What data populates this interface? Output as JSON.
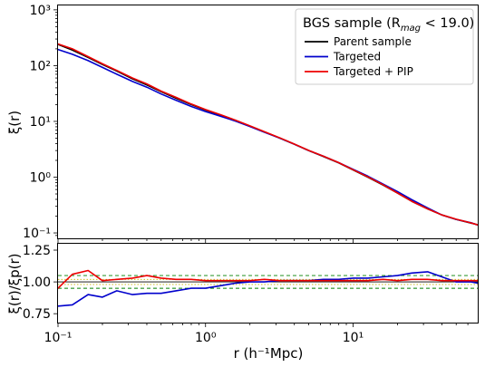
{
  "chart_data": {
    "type": "line",
    "x_scale": "log",
    "xlabel": "r (h⁻¹Mpc)",
    "xlim": [
      0.1,
      70
    ],
    "x_ticks": [
      0.1,
      1,
      10
    ],
    "x_tick_labels": [
      "10⁻¹",
      "10⁰",
      "10¹"
    ],
    "top_panel": {
      "ylabel": "ξ(r)",
      "y_scale": "log",
      "ylim": [
        0.08,
        1200
      ],
      "y_ticks": [
        0.1,
        1,
        10,
        100,
        1000
      ],
      "y_tick_labels": [
        "10⁻¹",
        "10⁰",
        "10¹",
        "10²",
        "10³"
      ],
      "legend": {
        "title": "BGS sample (R",
        "title_sub": "mag",
        "title_tail": " < 19.0)",
        "position": "top-right",
        "entries": [
          {
            "label": "Parent sample",
            "color": "#000000"
          },
          {
            "label": "Targeted",
            "color": "#0000cc"
          },
          {
            "label": "Targeted + PIP",
            "color": "#ee0000"
          }
        ]
      },
      "series": [
        {
          "name": "Parent sample",
          "color": "#000000",
          "x": [
            0.1,
            0.125,
            0.16,
            0.2,
            0.25,
            0.32,
            0.4,
            0.5,
            0.63,
            0.8,
            1.0,
            1.26,
            1.6,
            2.0,
            2.5,
            3.2,
            4.0,
            5.0,
            6.3,
            8.0,
            10,
            12.6,
            16,
            20,
            25,
            32,
            40,
            50,
            63,
            70
          ],
          "y": [
            240,
            190,
            140,
            105,
            80,
            58,
            45,
            34,
            26,
            20,
            16,
            13,
            10.4,
            8.2,
            6.5,
            5.0,
            3.9,
            3.0,
            2.35,
            1.8,
            1.35,
            1.0,
            0.72,
            0.52,
            0.37,
            0.27,
            0.21,
            0.175,
            0.15,
            0.14
          ]
        },
        {
          "name": "Targeted",
          "color": "#0000cc",
          "x": [
            0.1,
            0.125,
            0.16,
            0.2,
            0.25,
            0.32,
            0.4,
            0.5,
            0.63,
            0.8,
            1.0,
            1.26,
            1.6,
            2.0,
            2.5,
            3.2,
            4.0,
            5.0,
            6.3,
            8.0,
            10,
            12.6,
            16,
            20,
            25,
            32,
            40,
            50,
            63,
            70
          ],
          "y": [
            195,
            160,
            123,
            93,
            70,
            52,
            41,
            31,
            24,
            18.5,
            15,
            12.4,
            10.1,
            8.1,
            6.4,
            5.0,
            3.9,
            3.0,
            2.37,
            1.82,
            1.38,
            1.04,
            0.75,
            0.55,
            0.395,
            0.28,
            0.21,
            0.175,
            0.152,
            0.138
          ]
        },
        {
          "name": "Targeted + PIP",
          "color": "#ee0000",
          "x": [
            0.1,
            0.125,
            0.16,
            0.2,
            0.25,
            0.32,
            0.4,
            0.5,
            0.63,
            0.8,
            1.0,
            1.26,
            1.6,
            2.0,
            2.5,
            3.2,
            4.0,
            5.0,
            6.3,
            8.0,
            10,
            12.6,
            16,
            20,
            25,
            32,
            40,
            50,
            63,
            70
          ],
          "y": [
            245,
            200,
            145,
            108,
            82,
            60,
            47,
            35,
            27,
            20.5,
            16.3,
            13.2,
            10.5,
            8.3,
            6.55,
            5.05,
            3.92,
            3.02,
            2.37,
            1.82,
            1.36,
            1.01,
            0.73,
            0.52,
            0.37,
            0.27,
            0.21,
            0.176,
            0.151,
            0.139
          ]
        }
      ]
    },
    "bottom_panel": {
      "ylabel": "ξ(r)/ξp(r)",
      "ylim": [
        0.68,
        1.3
      ],
      "y_ticks": [
        0.75,
        1.0,
        1.25
      ],
      "y_tick_labels": [
        "0.75",
        "1.00",
        "1.25"
      ],
      "reference_lines": [
        {
          "y": 1.05,
          "color": "#008000",
          "style": "dashed"
        },
        {
          "y": 0.95,
          "color": "#008000",
          "style": "dashed"
        },
        {
          "y": 1.02,
          "color": "#c8b400",
          "style": "dotted"
        },
        {
          "y": 0.98,
          "color": "#c8b400",
          "style": "dotted"
        },
        {
          "y": 1.0,
          "color": "#000000",
          "style": "solid"
        }
      ],
      "series": [
        {
          "name": "Targeted",
          "color": "#0000cc",
          "x": [
            0.1,
            0.125,
            0.16,
            0.2,
            0.25,
            0.32,
            0.4,
            0.5,
            0.63,
            0.8,
            1.0,
            1.26,
            1.6,
            2.0,
            2.5,
            3.2,
            4.0,
            5.0,
            6.3,
            8.0,
            10,
            12.6,
            16,
            20,
            25,
            32,
            40,
            50,
            63,
            70
          ],
          "y": [
            0.81,
            0.82,
            0.9,
            0.88,
            0.93,
            0.9,
            0.91,
            0.91,
            0.93,
            0.95,
            0.95,
            0.97,
            0.99,
            1.0,
            1.0,
            1.01,
            1.01,
            1.01,
            1.02,
            1.02,
            1.03,
            1.03,
            1.04,
            1.05,
            1.07,
            1.08,
            1.04,
            1.0,
            1.0,
            0.99
          ]
        },
        {
          "name": "Targeted + PIP",
          "color": "#ee0000",
          "x": [
            0.1,
            0.125,
            0.16,
            0.2,
            0.25,
            0.32,
            0.4,
            0.5,
            0.63,
            0.8,
            1.0,
            1.26,
            1.6,
            2.0,
            2.5,
            3.2,
            4.0,
            5.0,
            6.3,
            8.0,
            10,
            12.6,
            16,
            20,
            25,
            32,
            40,
            50,
            63,
            70
          ],
          "y": [
            0.95,
            1.06,
            1.09,
            1.01,
            1.02,
            1.03,
            1.05,
            1.03,
            1.02,
            1.02,
            1.01,
            1.01,
            1.01,
            1.01,
            1.02,
            1.01,
            1.01,
            1.01,
            1.01,
            1.01,
            1.01,
            1.01,
            1.02,
            1.01,
            1.02,
            1.02,
            1.01,
            1.01,
            1.01,
            1.01
          ]
        }
      ]
    }
  }
}
